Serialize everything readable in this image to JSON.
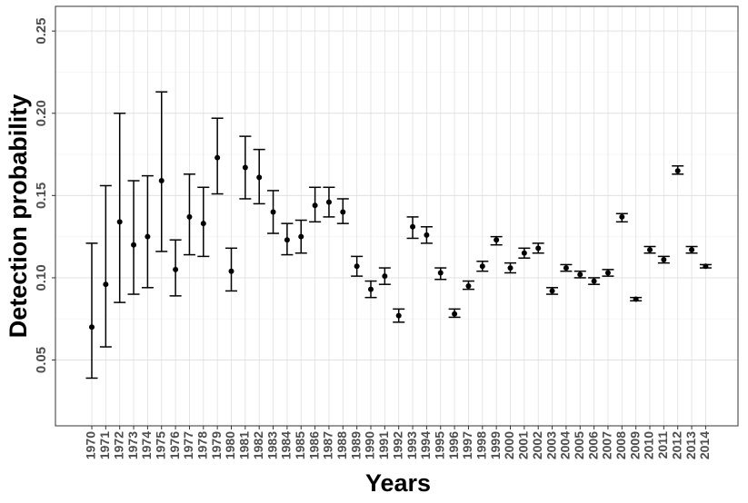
{
  "chart_data": {
    "type": "scatter",
    "subtype": "point-with-errorbars",
    "xlabel": "Years",
    "ylabel": "Detection probability",
    "ylim": [
      0.01,
      0.265
    ],
    "yticks": [
      0.05,
      0.1,
      0.15,
      0.2,
      0.25
    ],
    "ytick_labels": [
      "0.05",
      "0.10",
      "0.15",
      "0.20",
      "0.25"
    ],
    "grid": true,
    "legend": "none",
    "colors": {
      "point": "#000000",
      "errorbar": "#000000",
      "grid": "#e0e0e0",
      "panel_border": "#333333"
    },
    "x": [
      "1970",
      "1971",
      "1972",
      "1973",
      "1974",
      "1975",
      "1976",
      "1977",
      "1978",
      "1979",
      "1980",
      "1981",
      "1982",
      "1983",
      "1984",
      "1985",
      "1986",
      "1987",
      "1988",
      "1989",
      "1990",
      "1991",
      "1992",
      "1993",
      "1994",
      "1995",
      "1996",
      "1997",
      "1998",
      "1999",
      "2000",
      "2001",
      "2002",
      "2003",
      "2004",
      "2005",
      "2006",
      "2007",
      "2008",
      "2009",
      "2010",
      "2011",
      "2012",
      "2013",
      "2014"
    ],
    "y": [
      0.07,
      0.096,
      0.134,
      0.12,
      0.125,
      0.159,
      0.105,
      0.137,
      0.133,
      0.173,
      0.104,
      0.167,
      0.161,
      0.14,
      0.123,
      0.125,
      0.144,
      0.146,
      0.14,
      0.107,
      0.093,
      0.101,
      0.077,
      0.131,
      0.126,
      0.103,
      0.078,
      0.095,
      0.107,
      0.123,
      0.106,
      0.115,
      0.118,
      0.092,
      0.106,
      0.102,
      0.098,
      0.103,
      0.137,
      0.087,
      0.117,
      0.111,
      0.165,
      0.117,
      0.107
    ],
    "lower": [
      0.039,
      0.058,
      0.085,
      0.09,
      0.094,
      0.116,
      0.089,
      0.114,
      0.113,
      0.151,
      0.092,
      0.148,
      0.145,
      0.127,
      0.114,
      0.115,
      0.134,
      0.137,
      0.133,
      0.101,
      0.088,
      0.096,
      0.073,
      0.124,
      0.121,
      0.099,
      0.076,
      0.093,
      0.104,
      0.12,
      0.103,
      0.112,
      0.115,
      0.09,
      0.104,
      0.1,
      0.096,
      0.101,
      0.134,
      0.086,
      0.115,
      0.109,
      0.163,
      0.115,
      0.106
    ],
    "upper": [
      0.121,
      0.156,
      0.2,
      0.159,
      0.162,
      0.213,
      0.123,
      0.163,
      0.155,
      0.197,
      0.118,
      0.186,
      0.178,
      0.153,
      0.133,
      0.135,
      0.155,
      0.155,
      0.148,
      0.113,
      0.098,
      0.106,
      0.081,
      0.137,
      0.131,
      0.106,
      0.081,
      0.098,
      0.11,
      0.125,
      0.109,
      0.118,
      0.121,
      0.094,
      0.108,
      0.104,
      0.1,
      0.105,
      0.139,
      0.088,
      0.119,
      0.113,
      0.168,
      0.119,
      0.108
    ]
  }
}
